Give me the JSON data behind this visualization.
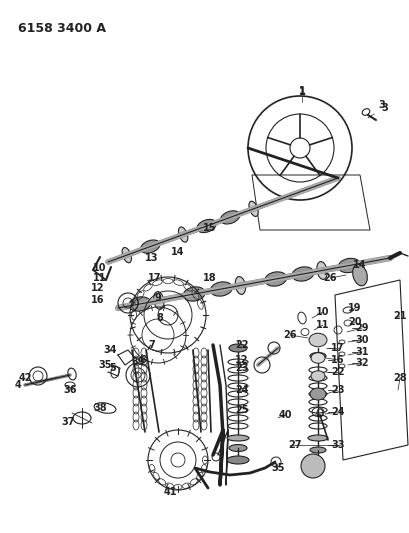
{
  "title": "6158 3400 A",
  "bg_color": "#ffffff",
  "line_color": "#222222",
  "title_fontsize": 9,
  "label_fontsize": 7,
  "fig_w": 4.1,
  "fig_h": 5.33,
  "dpi": 100
}
